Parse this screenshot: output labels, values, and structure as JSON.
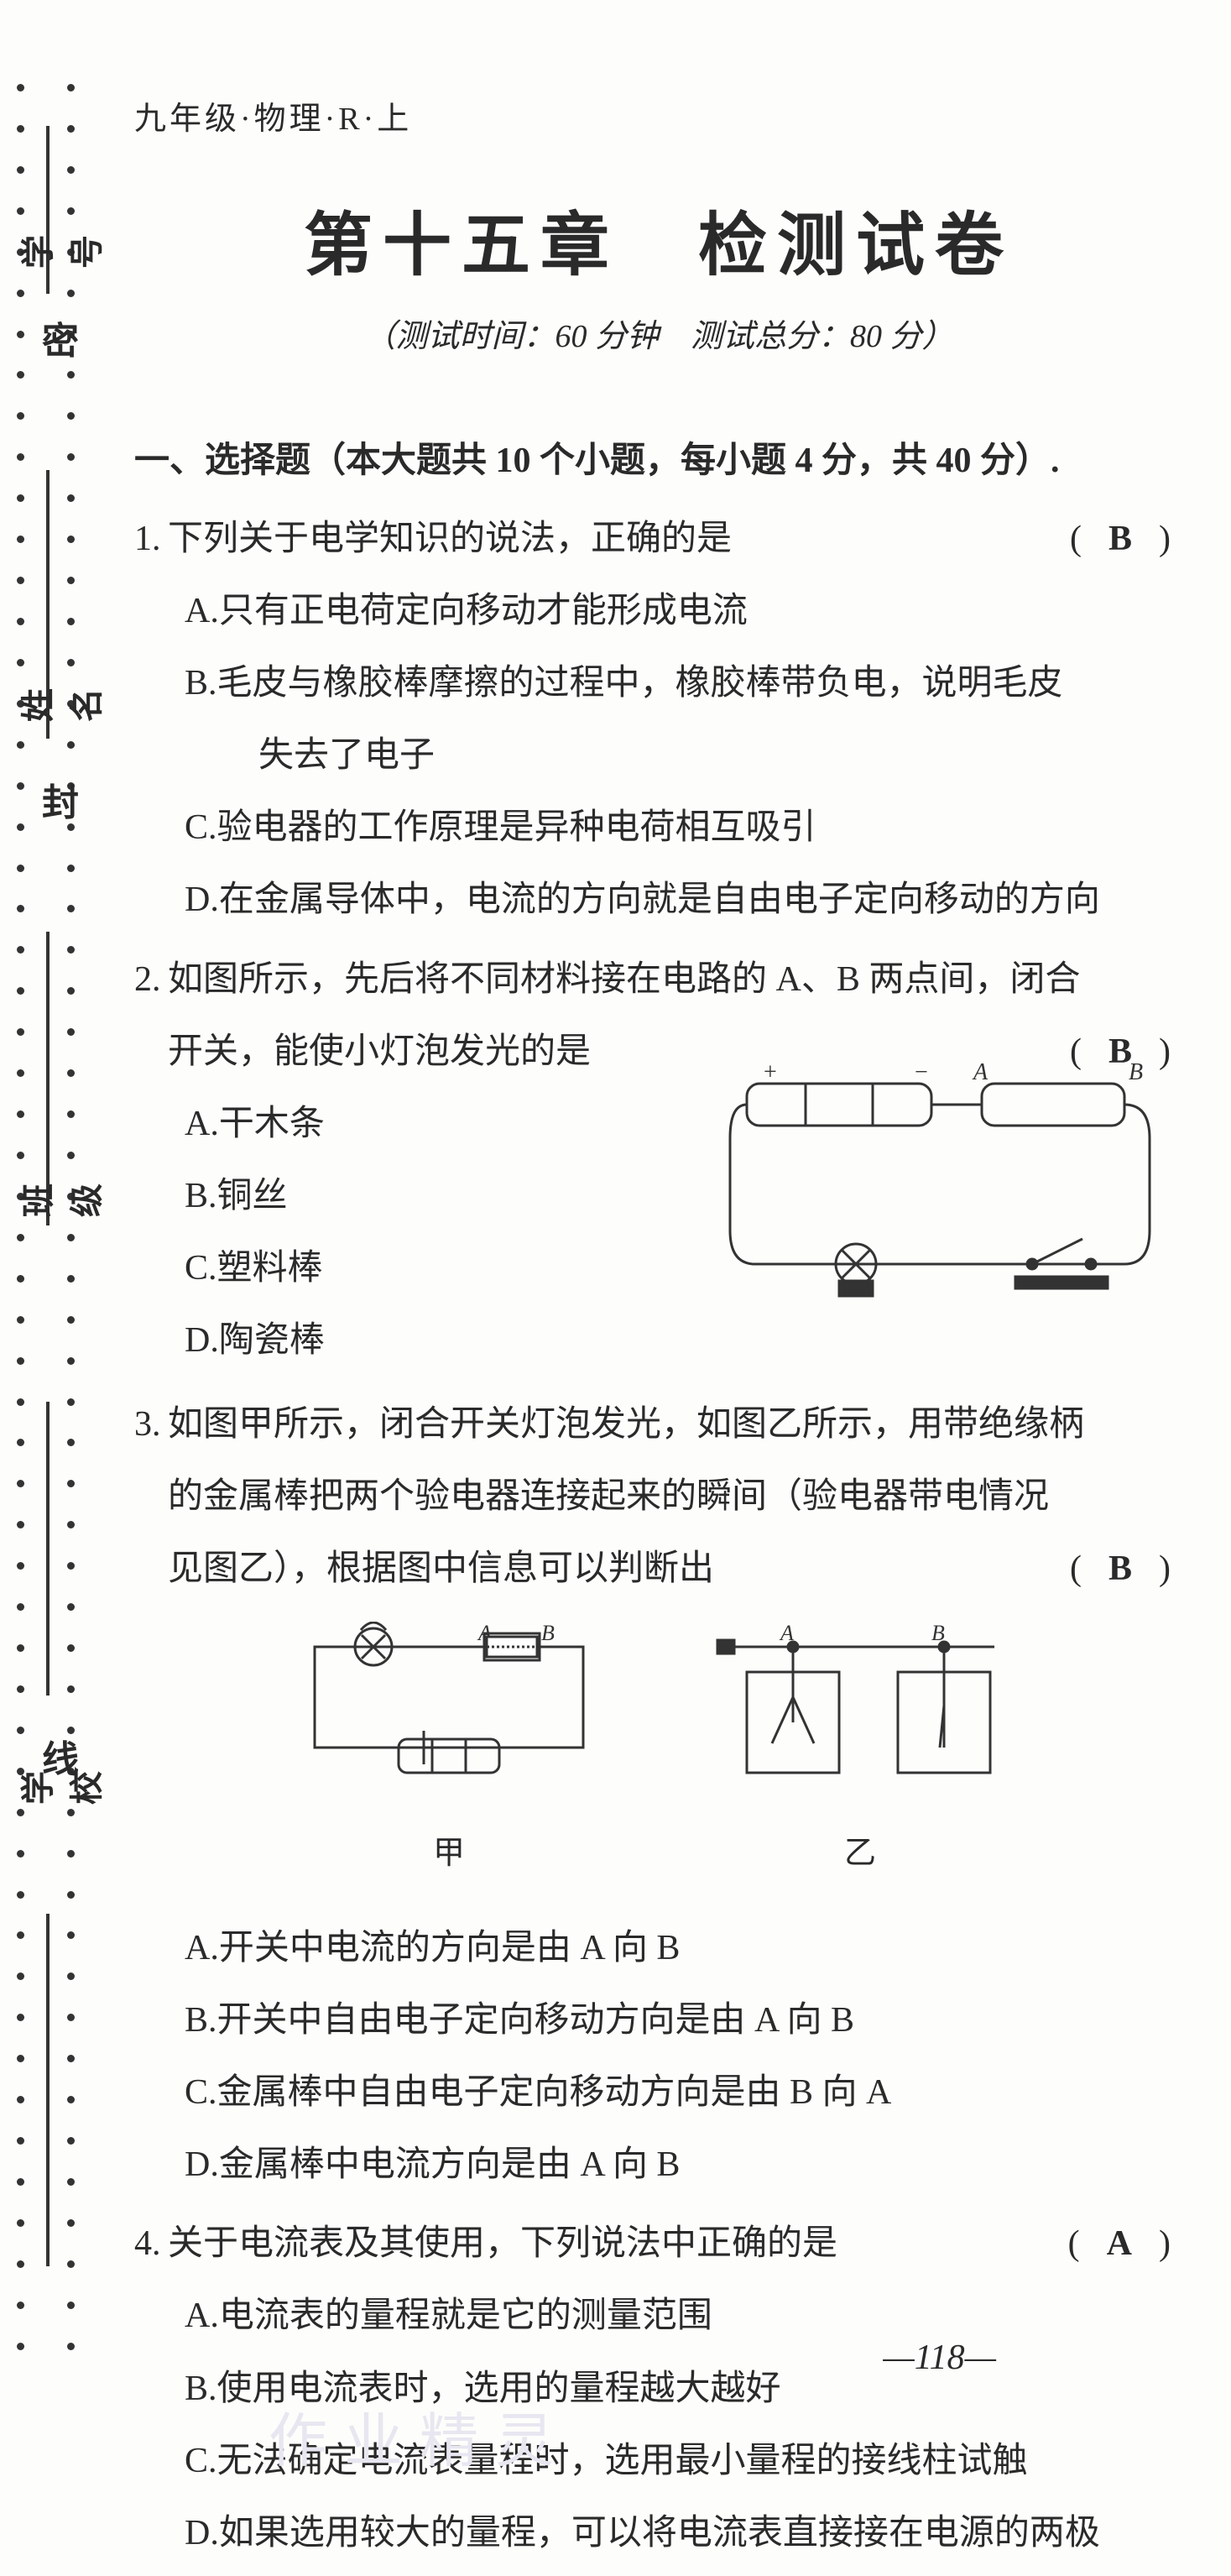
{
  "header": "九年级·物理·R·上",
  "title": "第十五章　检测试卷",
  "subtitle": "（测试时间：60 分钟　测试总分：80 分）",
  "section1": "一、选择题（本大题共 10 个小题，每小题 4 分，共 40 分）.",
  "margin": {
    "labels": [
      "学号",
      "姓名",
      "班级",
      "学校"
    ],
    "seals": [
      "密",
      "封",
      "线"
    ]
  },
  "questions": [
    {
      "num": "1.",
      "stem": "下列关于电学知识的说法，正确的是",
      "answer": "B",
      "options": [
        "A.只有正电荷定向移动才能形成电流",
        "B.毛皮与橡胶棒摩擦的过程中，橡胶棒带负电，说明毛皮",
        "　失去了电子",
        "C.验电器的工作原理是异种电荷相互吸引",
        "D.在金属导体中，电流的方向就是自由电子定向移动的方向"
      ]
    },
    {
      "num": "2.",
      "stem": "如图所示，先后将不同材料接在电路的 A、B 两点间，闭合",
      "stem2": "开关，能使小灯泡发光的是",
      "answer": "B",
      "options": [
        "A.干木条",
        "B.铜丝",
        "C.塑料棒",
        "D.陶瓷棒"
      ]
    },
    {
      "num": "3.",
      "stem": "如图甲所示，闭合开关灯泡发光，如图乙所示，用带绝缘柄",
      "stem2": "的金属棒把两个验电器连接起来的瞬间（验电器带电情况",
      "stem3": "见图乙），根据图中信息可以判断出",
      "answer": "B",
      "fig_labels": [
        "甲",
        "乙"
      ],
      "options": [
        "A.开关中电流的方向是由 A 向 B",
        "B.开关中自由电子定向移动方向是由 A 向 B",
        "C.金属棒中自由电子定向移动方向是由 B 向 A",
        "D.金属棒中电流方向是由 A 向 B"
      ]
    },
    {
      "num": "4.",
      "stem": "关于电流表及其使用，下列说法中正确的是",
      "answer": "A",
      "options": [
        "A.电流表的量程就是它的测量范围",
        "B.使用电流表时，选用的量程越大越好",
        "C.无法确定电流表量程时，选用最小量程的接线柱试触",
        "D.如果选用较大的量程，可以将电流表直接接在电源的两极"
      ]
    }
  ],
  "page_num": "—118—",
  "watermark": "作业精灵",
  "style": {
    "background": "#fdfdfb",
    "text_color": "#2a2a2a",
    "body_fontsize": 42,
    "title_fontsize": 82,
    "line_height": 2.05
  }
}
